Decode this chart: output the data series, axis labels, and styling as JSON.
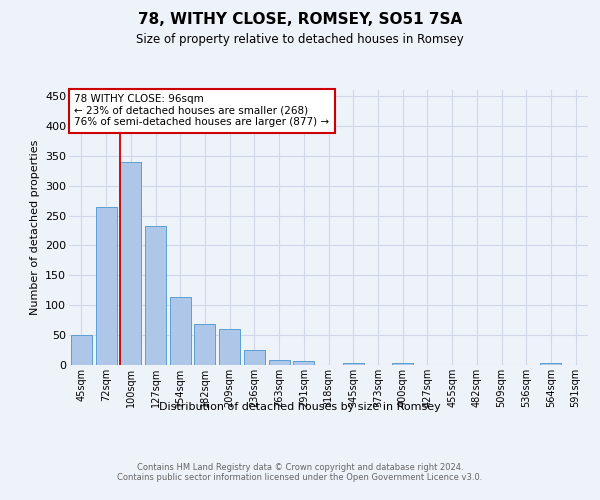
{
  "title": "78, WITHY CLOSE, ROMSEY, SO51 7SA",
  "subtitle": "Size of property relative to detached houses in Romsey",
  "xlabel": "Distribution of detached houses by size in Romsey",
  "ylabel": "Number of detached properties",
  "categories": [
    "45sqm",
    "72sqm",
    "100sqm",
    "127sqm",
    "154sqm",
    "182sqm",
    "209sqm",
    "236sqm",
    "263sqm",
    "291sqm",
    "318sqm",
    "345sqm",
    "373sqm",
    "400sqm",
    "427sqm",
    "455sqm",
    "482sqm",
    "509sqm",
    "536sqm",
    "564sqm",
    "591sqm"
  ],
  "values": [
    50,
    265,
    340,
    232,
    113,
    68,
    60,
    25,
    8,
    7,
    0,
    4,
    0,
    3,
    0,
    0,
    0,
    0,
    0,
    4,
    0
  ],
  "bar_color": "#aec6e8",
  "bar_edge_color": "#5a9fd4",
  "grid_color": "#d0d8e8",
  "background_color": "#eef2f9",
  "vline_color": "#cc0000",
  "vline_x_index": 2,
  "annotation_text": "78 WITHY CLOSE: 96sqm\n← 23% of detached houses are smaller (268)\n76% of semi-detached houses are larger (877) →",
  "annotation_box_facecolor": "#ffffff",
  "annotation_box_edgecolor": "#cc0000",
  "ylim": [
    0,
    460
  ],
  "yticks": [
    0,
    50,
    100,
    150,
    200,
    250,
    300,
    350,
    400,
    450
  ],
  "footer": "Contains HM Land Registry data © Crown copyright and database right 2024.\nContains public sector information licensed under the Open Government Licence v3.0."
}
